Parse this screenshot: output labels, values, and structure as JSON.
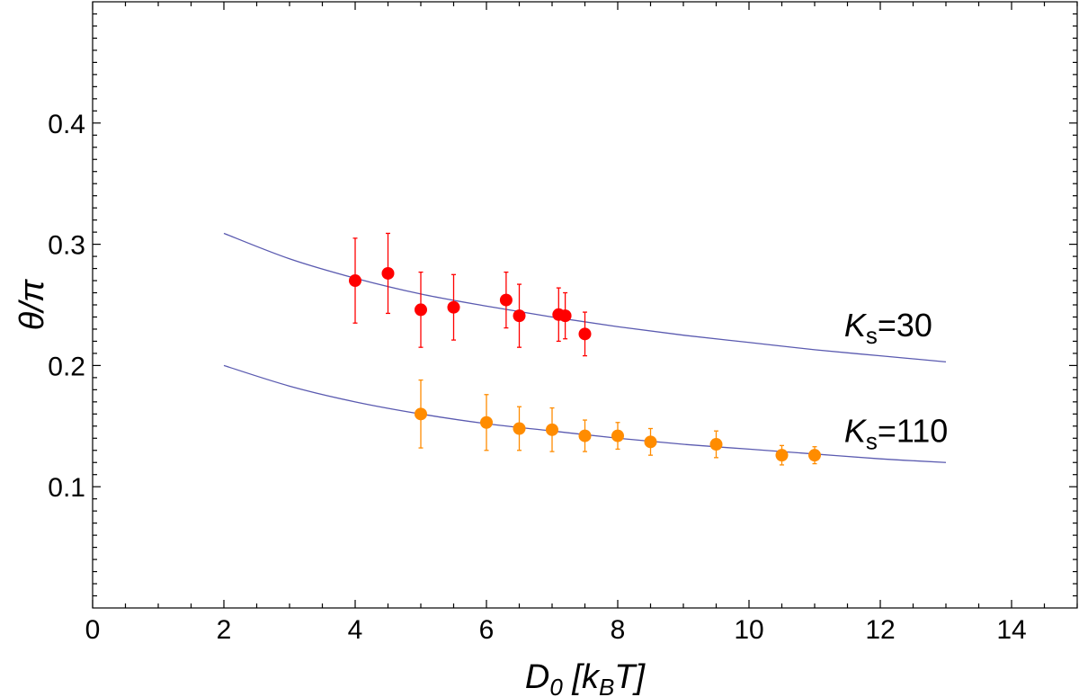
{
  "chart_data": {
    "type": "scatter",
    "xlabel": {
      "main": "D",
      "sub": "0",
      "bracket_open": "[k",
      "bracket_sub": "B",
      "bracket_close": "T]"
    },
    "ylabel": "θ/π",
    "xlim": [
      0,
      15
    ],
    "ylim": [
      0,
      0.5
    ],
    "x_ticks": [
      0,
      2,
      4,
      6,
      8,
      10,
      12,
      14
    ],
    "x_tick_labels": [
      "0",
      "2",
      "4",
      "6",
      "8",
      "10",
      "12",
      "14"
    ],
    "y_ticks": [
      0.1,
      0.2,
      0.3,
      0.4
    ],
    "y_tick_labels": [
      "0.1",
      "0.2",
      "0.3",
      "0.4"
    ],
    "grid": false,
    "series": [
      {
        "name": "Ks=30",
        "label": {
          "K": "K",
          "sub": "s",
          "value": "=30"
        },
        "color": "#ff0000",
        "points": [
          {
            "x": 4.0,
            "y": 0.27,
            "err": 0.035
          },
          {
            "x": 4.5,
            "y": 0.276,
            "err": 0.033
          },
          {
            "x": 5.0,
            "y": 0.246,
            "err": 0.031
          },
          {
            "x": 5.5,
            "y": 0.248,
            "err": 0.027
          },
          {
            "x": 6.3,
            "y": 0.254,
            "err": 0.023
          },
          {
            "x": 6.5,
            "y": 0.241,
            "err": 0.026
          },
          {
            "x": 7.1,
            "y": 0.242,
            "err": 0.022
          },
          {
            "x": 7.2,
            "y": 0.241,
            "err": 0.019
          },
          {
            "x": 7.5,
            "y": 0.226,
            "err": 0.018
          }
        ],
        "curve": [
          {
            "x": 2,
            "y": 0.309
          },
          {
            "x": 3,
            "y": 0.288
          },
          {
            "x": 4,
            "y": 0.272
          },
          {
            "x": 5,
            "y": 0.259
          },
          {
            "x": 6,
            "y": 0.249
          },
          {
            "x": 7,
            "y": 0.24
          },
          {
            "x": 8,
            "y": 0.232
          },
          {
            "x": 9,
            "y": 0.225
          },
          {
            "x": 10,
            "y": 0.219
          },
          {
            "x": 11,
            "y": 0.213
          },
          {
            "x": 12,
            "y": 0.208
          },
          {
            "x": 13,
            "y": 0.203
          }
        ]
      },
      {
        "name": "Ks=110",
        "label": {
          "K": "K",
          "sub": "s",
          "value": "=110"
        },
        "color": "#ff8c00",
        "points": [
          {
            "x": 5.0,
            "y": 0.16,
            "err": 0.028
          },
          {
            "x": 6.0,
            "y": 0.153,
            "err": 0.023
          },
          {
            "x": 6.5,
            "y": 0.148,
            "err": 0.018
          },
          {
            "x": 7.0,
            "y": 0.147,
            "err": 0.018
          },
          {
            "x": 7.5,
            "y": 0.142,
            "err": 0.013
          },
          {
            "x": 8.0,
            "y": 0.142,
            "err": 0.011
          },
          {
            "x": 8.5,
            "y": 0.137,
            "err": 0.011
          },
          {
            "x": 9.5,
            "y": 0.135,
            "err": 0.011
          },
          {
            "x": 10.5,
            "y": 0.126,
            "err": 0.008
          },
          {
            "x": 11.0,
            "y": 0.126,
            "err": 0.007
          }
        ],
        "curve": [
          {
            "x": 2,
            "y": 0.2
          },
          {
            "x": 3,
            "y": 0.183
          },
          {
            "x": 4,
            "y": 0.17
          },
          {
            "x": 5,
            "y": 0.16
          },
          {
            "x": 6,
            "y": 0.152
          },
          {
            "x": 7,
            "y": 0.146
          },
          {
            "x": 8,
            "y": 0.14
          },
          {
            "x": 9,
            "y": 0.135
          },
          {
            "x": 10,
            "y": 0.131
          },
          {
            "x": 11,
            "y": 0.127
          },
          {
            "x": 12,
            "y": 0.123
          },
          {
            "x": 13,
            "y": 0.12
          }
        ]
      }
    ]
  },
  "colors": {
    "curve": "#5a5ab0"
  }
}
